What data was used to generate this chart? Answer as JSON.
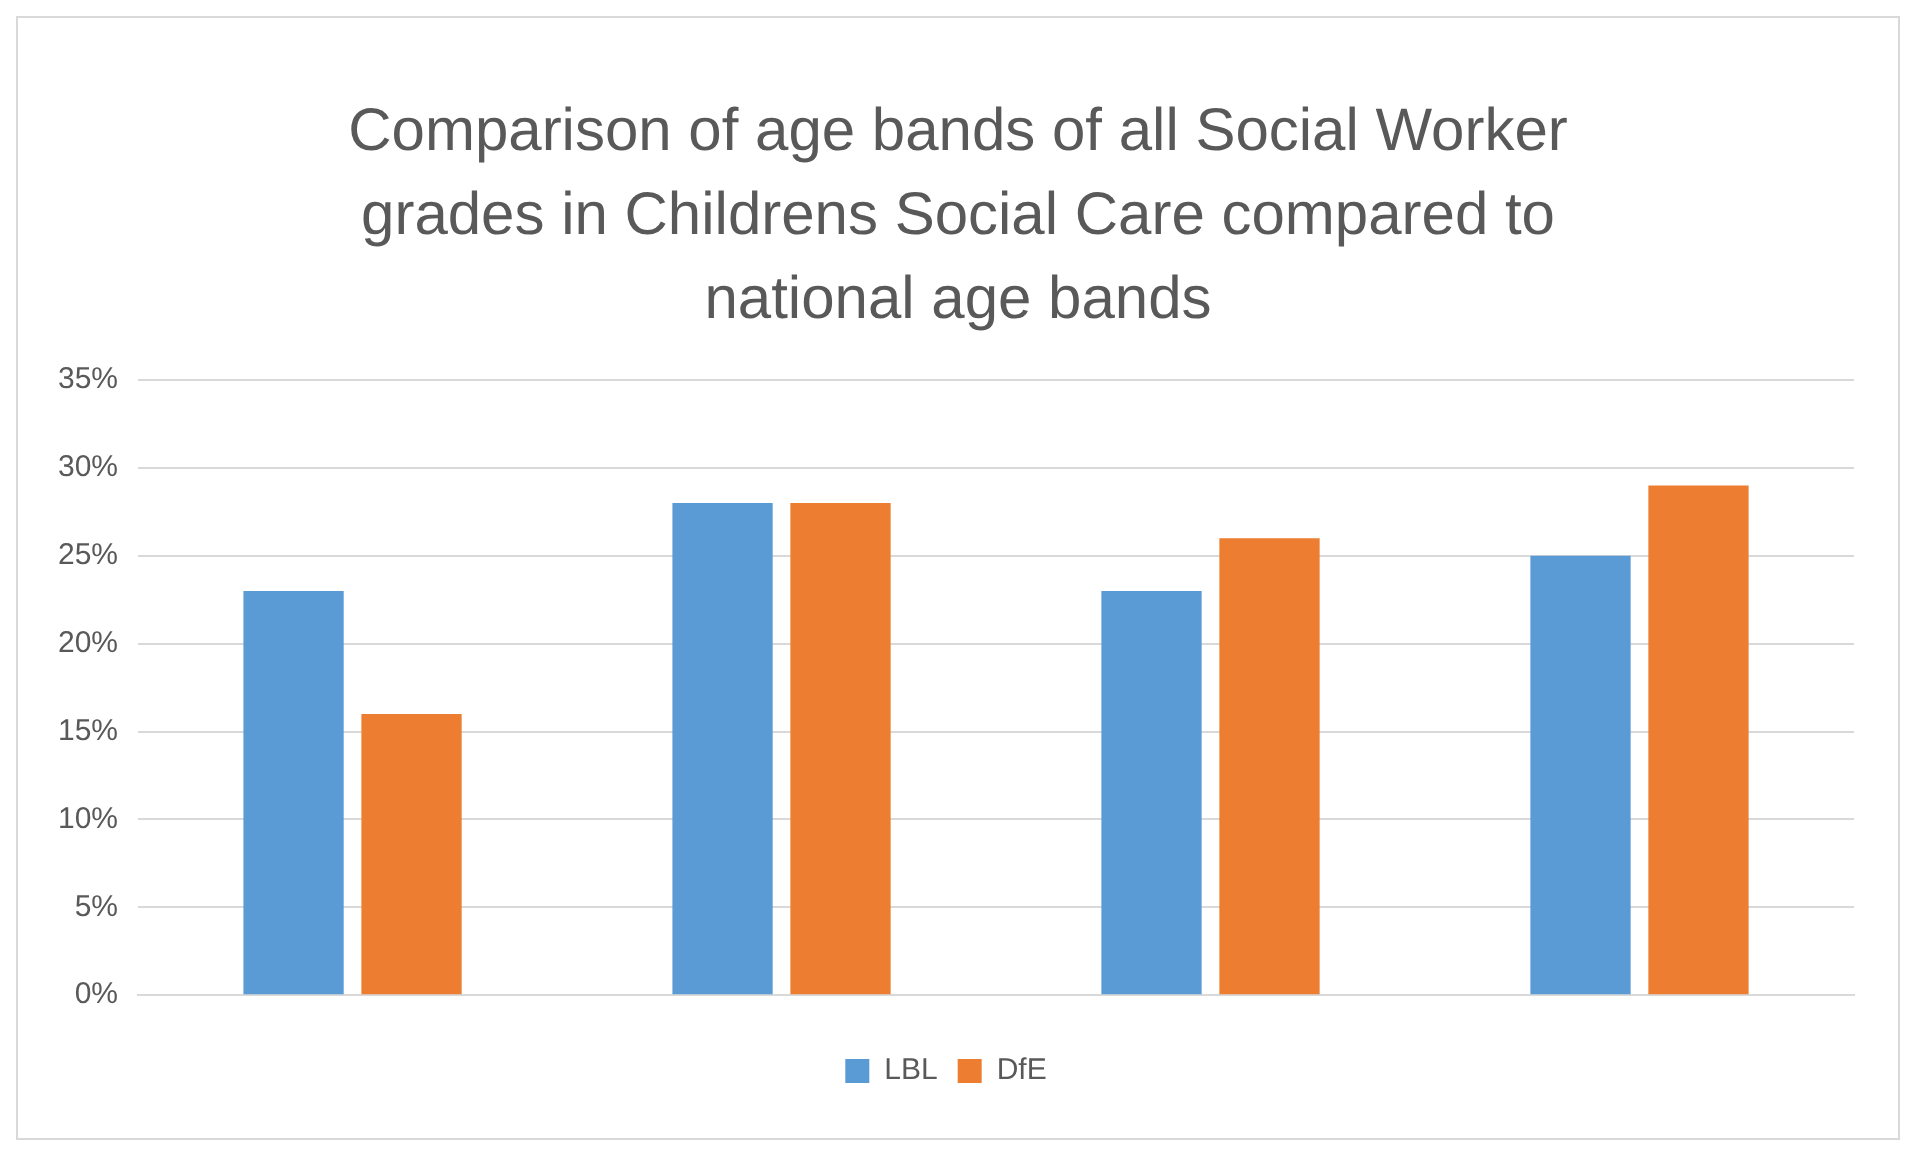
{
  "chart_data": {
    "type": "bar",
    "title": "Comparison of age bands of all Social Worker grades in Childrens Social Care compared to national age bands",
    "categories": [
      null,
      null,
      null,
      null
    ],
    "series": [
      {
        "name": "LBL",
        "color": "#5b9bd5",
        "values": [
          23,
          28,
          23,
          25
        ]
      },
      {
        "name": "DfE",
        "color": "#ed7d31",
        "values": [
          16,
          28,
          26,
          29
        ]
      }
    ],
    "ylim": [
      0,
      35
    ],
    "yticks": [
      {
        "value": 0,
        "label": "0%"
      },
      {
        "value": 5,
        "label": "5%"
      },
      {
        "value": 10,
        "label": "10%"
      },
      {
        "value": 15,
        "label": "15%"
      },
      {
        "value": 20,
        "label": "20%"
      },
      {
        "value": 25,
        "label": "25%"
      },
      {
        "value": 30,
        "label": "30%"
      },
      {
        "value": 35,
        "label": "35%"
      }
    ],
    "grid": "y",
    "legend": "bottom"
  }
}
